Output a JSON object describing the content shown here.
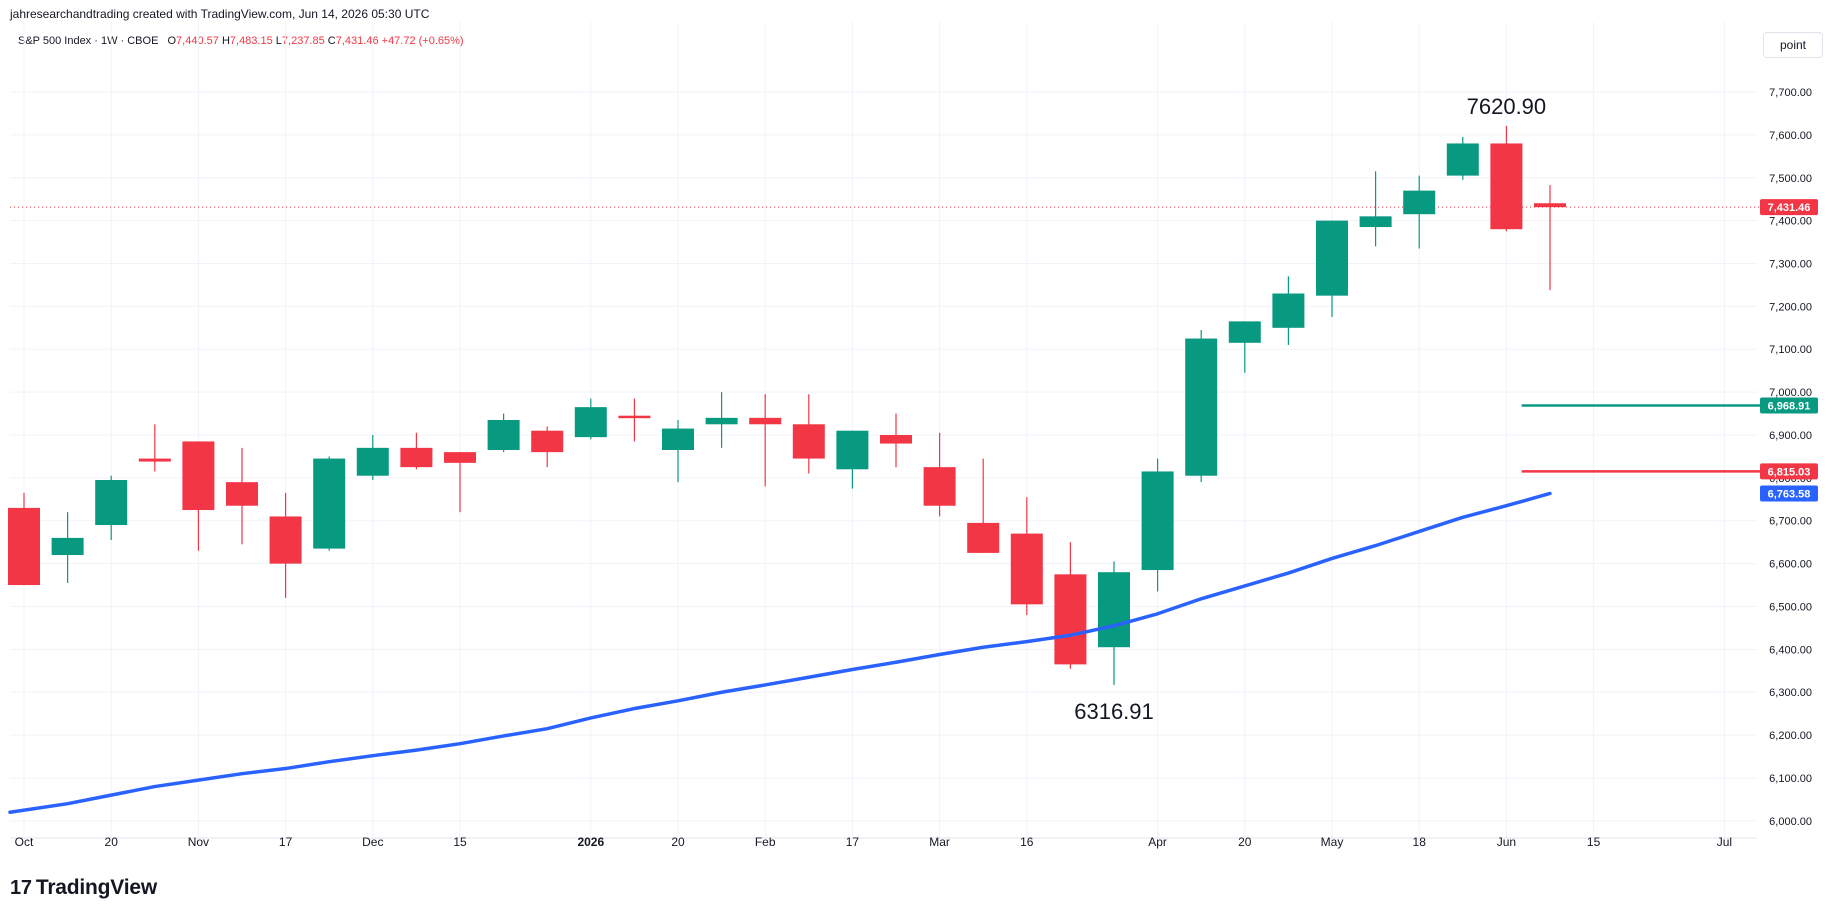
{
  "header": {
    "credit": "jahresearchandtrading created with TradingView.com, Jun 14, 2026 05:30 UTC",
    "symbol": "S&P 500 Index · 1W · CBOE",
    "open_label": "O",
    "open": "7,440.57",
    "high_label": "H",
    "high": "7,483.15",
    "low_label": "L",
    "low": "7,237.85",
    "close_label": "C",
    "close": "7,431.46",
    "change": "+47.72 (+0.65%)"
  },
  "toolbar": {
    "scale_mode": "point"
  },
  "footer": {
    "brand": "TradingView",
    "brand_mark": "17"
  },
  "colors": {
    "up": "#089981",
    "down": "#f23645",
    "ma": "#2962ff",
    "grid": "#f0f3fa",
    "text": "#131722"
  },
  "chart_data": {
    "type": "candlestick",
    "ylim": [
      5960,
      7770
    ],
    "y_ticks": [
      {
        "value": 6000,
        "label": "6,000.00"
      },
      {
        "value": 6100,
        "label": "6,100.00"
      },
      {
        "value": 6200,
        "label": "6,200.00"
      },
      {
        "value": 6300,
        "label": "6,300.00"
      },
      {
        "value": 6400,
        "label": "6,400.00"
      },
      {
        "value": 6500,
        "label": "6,500.00"
      },
      {
        "value": 6600,
        "label": "6,600.00"
      },
      {
        "value": 6700,
        "label": "6,700.00"
      },
      {
        "value": 6800,
        "label": "6,800.00"
      },
      {
        "value": 6900,
        "label": "6,900.00"
      },
      {
        "value": 7000,
        "label": "7,000.00"
      },
      {
        "value": 7100,
        "label": "7,100.00"
      },
      {
        "value": 7200,
        "label": "7,200.00"
      },
      {
        "value": 7300,
        "label": "7,300.00"
      },
      {
        "value": 7400,
        "label": "7,400.00"
      },
      {
        "value": 7500,
        "label": "7,500.00"
      },
      {
        "value": 7600,
        "label": "7,600.00"
      },
      {
        "value": 7700,
        "label": "7,700.00"
      }
    ],
    "x_ticks": [
      {
        "index": 0,
        "label": "Oct"
      },
      {
        "index": 2,
        "label": "20"
      },
      {
        "index": 4,
        "label": "Nov"
      },
      {
        "index": 6,
        "label": "17"
      },
      {
        "index": 8,
        "label": "Dec"
      },
      {
        "index": 10,
        "label": "15"
      },
      {
        "index": 13,
        "label": "2026",
        "bold": true
      },
      {
        "index": 15,
        "label": "20"
      },
      {
        "index": 17,
        "label": "Feb"
      },
      {
        "index": 19,
        "label": "17"
      },
      {
        "index": 21,
        "label": "Mar"
      },
      {
        "index": 23,
        "label": "16"
      },
      {
        "index": 26,
        "label": "Apr"
      },
      {
        "index": 28,
        "label": "20"
      },
      {
        "index": 30,
        "label": "May"
      },
      {
        "index": 32,
        "label": "18"
      },
      {
        "index": 34,
        "label": "Jun"
      },
      {
        "index": 36,
        "label": "15"
      },
      {
        "index": 39,
        "label": "Jul"
      }
    ],
    "candles": [
      {
        "o": 6730,
        "h": 6765,
        "l": 6555,
        "c": 6550
      },
      {
        "o": 6620,
        "h": 6720,
        "l": 6555,
        "c": 6660
      },
      {
        "o": 6690,
        "h": 6805,
        "l": 6655,
        "c": 6795
      },
      {
        "o": 6845,
        "h": 6925,
        "l": 6815,
        "c": 6838
      },
      {
        "o": 6885,
        "h": 6885,
        "l": 6630,
        "c": 6725
      },
      {
        "o": 6790,
        "h": 6870,
        "l": 6645,
        "c": 6735
      },
      {
        "o": 6710,
        "h": 6765,
        "l": 6520,
        "c": 6600
      },
      {
        "o": 6635,
        "h": 6850,
        "l": 6630,
        "c": 6845
      },
      {
        "o": 6805,
        "h": 6900,
        "l": 6795,
        "c": 6870
      },
      {
        "o": 6870,
        "h": 6905,
        "l": 6820,
        "c": 6825
      },
      {
        "o": 6860,
        "h": 6860,
        "l": 6720,
        "c": 6835
      },
      {
        "o": 6865,
        "h": 6950,
        "l": 6860,
        "c": 6935
      },
      {
        "o": 6910,
        "h": 6920,
        "l": 6825,
        "c": 6860
      },
      {
        "o": 6895,
        "h": 6985,
        "l": 6890,
        "c": 6965
      },
      {
        "o": 6945,
        "h": 6985,
        "l": 6885,
        "c": 6940
      },
      {
        "o": 6865,
        "h": 6935,
        "l": 6790,
        "c": 6915
      },
      {
        "o": 6925,
        "h": 7000,
        "l": 6870,
        "c": 6940
      },
      {
        "o": 6940,
        "h": 6995,
        "l": 6780,
        "c": 6925
      },
      {
        "o": 6925,
        "h": 6995,
        "l": 6810,
        "c": 6845
      },
      {
        "o": 6820,
        "h": 6910,
        "l": 6775,
        "c": 6910
      },
      {
        "o": 6900,
        "h": 6950,
        "l": 6825,
        "c": 6880
      },
      {
        "o": 6825,
        "h": 6905,
        "l": 6710,
        "c": 6735
      },
      {
        "o": 6695,
        "h": 6845,
        "l": 6625,
        "c": 6625
      },
      {
        "o": 6670,
        "h": 6755,
        "l": 6480,
        "c": 6505
      },
      {
        "o": 6575,
        "h": 6650,
        "l": 6355,
        "c": 6365
      },
      {
        "o": 6405,
        "h": 6605,
        "l": 6316.91,
        "c": 6580
      },
      {
        "o": 6585,
        "h": 6845,
        "l": 6535,
        "c": 6815
      },
      {
        "o": 6805,
        "h": 7145,
        "l": 6790,
        "c": 7125
      },
      {
        "o": 7115,
        "h": 7165,
        "l": 7045,
        "c": 7165
      },
      {
        "o": 7150,
        "h": 7270,
        "l": 7110,
        "c": 7230
      },
      {
        "o": 7225,
        "h": 7400,
        "l": 7175,
        "c": 7400
      },
      {
        "o": 7385,
        "h": 7515,
        "l": 7340,
        "c": 7410
      },
      {
        "o": 7415,
        "h": 7505,
        "l": 7335,
        "c": 7470
      },
      {
        "o": 7505,
        "h": 7595,
        "l": 7495,
        "c": 7580
      },
      {
        "o": 7580,
        "h": 7620.9,
        "l": 7375,
        "c": 7380
      },
      {
        "o": 7440.57,
        "h": 7483.15,
        "l": 7237.85,
        "c": 7431.46
      }
    ],
    "ma_series": {
      "values": [
        6020,
        6040,
        6060,
        6080,
        6095,
        6110,
        6122,
        6138,
        6152,
        6165,
        6180,
        6198,
        6215,
        6240,
        6262,
        6280,
        6300,
        6317,
        6335,
        6353,
        6370,
        6388,
        6405,
        6418,
        6433,
        6455,
        6483,
        6518,
        6548,
        6578,
        6612,
        6642,
        6675,
        6708,
        6735,
        6763.58
      ]
    },
    "horizontal_lines": [
      {
        "value": 6968.91,
        "label": "6,968.91",
        "color": "#089981",
        "start_index": 34.35
      },
      {
        "value": 6815.03,
        "label": "6,815.03",
        "color": "#f23645",
        "start_index": 34.35
      }
    ],
    "price_tags": [
      {
        "value": 7431.46,
        "label": "7,431.46",
        "color": "#f23645"
      },
      {
        "value": 6968.91,
        "label": "6,968.91",
        "color": "#089981"
      },
      {
        "value": 6815.03,
        "label": "6,815.03",
        "color": "#f23645"
      },
      {
        "value": 6763.58,
        "label": "6,763.58",
        "color": "#2962ff"
      }
    ],
    "last_price": 7431.46,
    "annotations": [
      {
        "text": "7620.90",
        "index": 34,
        "value": 7620.9,
        "pos": "above"
      },
      {
        "text": "6316.91",
        "index": 25,
        "value": 6316.91,
        "pos": "below"
      }
    ]
  }
}
